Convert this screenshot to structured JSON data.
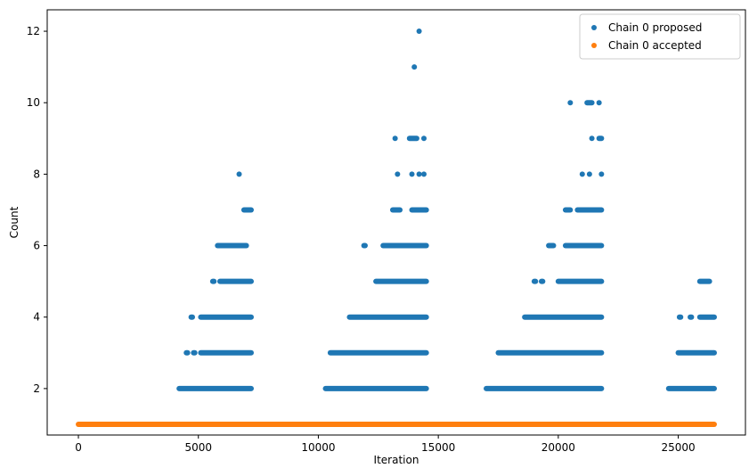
{
  "chart_data": {
    "type": "scatter",
    "title": "",
    "xlabel": "Iteration",
    "ylabel": "Count",
    "xlim": [
      -1300,
      27800
    ],
    "ylim": [
      0.7,
      12.6
    ],
    "x_ticks": [
      0,
      5000,
      10000,
      15000,
      20000,
      25000
    ],
    "y_ticks": [
      2,
      4,
      6,
      8,
      10,
      12
    ],
    "grid": false,
    "legend_position": "top-right",
    "series": [
      {
        "name": "Chain 0 proposed",
        "color": "#1f77b4",
        "marker": "dot",
        "bands": [
          {
            "y": 2,
            "ranges": [
              [
                4200,
                7200
              ],
              [
                10300,
                14500
              ],
              [
                17000,
                21800
              ],
              [
                24600,
                26500
              ]
            ]
          },
          {
            "y": 3,
            "ranges": [
              [
                4500,
                4550
              ],
              [
                4800,
                4850
              ],
              [
                5100,
                7200
              ],
              [
                10500,
                14500
              ],
              [
                17500,
                21800
              ],
              [
                25000,
                26500
              ]
            ]
          },
          {
            "y": 4,
            "ranges": [
              [
                4700,
                4750
              ],
              [
                5100,
                7200
              ],
              [
                11300,
                14500
              ],
              [
                18600,
                21800
              ],
              [
                25050,
                25100
              ],
              [
                25500,
                25550
              ],
              [
                25900,
                26500
              ]
            ]
          },
          {
            "y": 5,
            "ranges": [
              [
                5600,
                5650
              ],
              [
                5900,
                7200
              ],
              [
                12400,
                14500
              ],
              [
                19000,
                19050
              ],
              [
                19300,
                19350
              ],
              [
                20000,
                21800
              ],
              [
                25900,
                26300
              ]
            ]
          },
          {
            "y": 6,
            "ranges": [
              [
                5800,
                7000
              ],
              [
                11900,
                11950
              ],
              [
                12700,
                14500
              ],
              [
                19600,
                19800
              ],
              [
                20300,
                21800
              ]
            ]
          },
          {
            "y": 7,
            "ranges": [
              [
                6900,
                7200
              ],
              [
                13100,
                13400
              ],
              [
                13900,
                14500
              ],
              [
                20300,
                20500
              ],
              [
                20800,
                21800
              ]
            ]
          },
          {
            "y": 8,
            "ranges": [
              [
                6700,
                6700
              ],
              [
                13300,
                13300
              ],
              [
                13900,
                13900
              ],
              [
                14200,
                14200
              ],
              [
                14400,
                14400
              ],
              [
                21000,
                21000
              ],
              [
                21300,
                21300
              ],
              [
                21800,
                21800
              ]
            ]
          },
          {
            "y": 9,
            "ranges": [
              [
                13200,
                13200
              ],
              [
                13800,
                14100
              ],
              [
                14400,
                14400
              ],
              [
                21400,
                21400
              ],
              [
                21700,
                21800
              ]
            ]
          },
          {
            "y": 10,
            "ranges": [
              [
                20500,
                20500
              ],
              [
                21200,
                21400
              ],
              [
                21700,
                21700
              ]
            ]
          },
          {
            "y": 11,
            "ranges": [
              [
                14000,
                14000
              ]
            ]
          },
          {
            "y": 12,
            "ranges": [
              [
                14200,
                14200
              ]
            ]
          }
        ]
      },
      {
        "name": "Chain 0 accepted",
        "color": "#ff7f0e",
        "marker": "dot",
        "bands": [
          {
            "y": 1,
            "ranges": [
              [
                0,
                26500
              ]
            ]
          }
        ]
      }
    ]
  }
}
